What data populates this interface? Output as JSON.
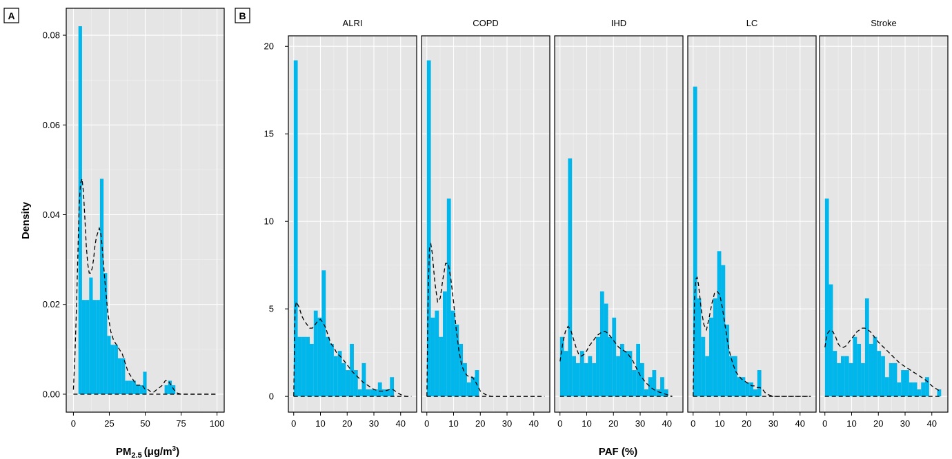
{
  "panels": {
    "a": {
      "letter": "A",
      "ylabel": "Density",
      "xlabel_main": "PM",
      "xlabel_sub": "2.5",
      "xlabel_unit_pre": "(μg/m",
      "xlabel_unit_sup": "3",
      "xlabel_unit_post": ")"
    },
    "b": {
      "letter": "B",
      "xlabel": "PAF (%)"
    }
  },
  "colors": {
    "bars": "#00b6ea",
    "panel_bg": "#e5e5e5",
    "grid": "#ffffff",
    "density_line": "#000000"
  },
  "chart_data": [
    {
      "type": "histogram",
      "panel": "A",
      "xlabel": "PM2.5 (μg/m3)",
      "ylabel": "Density",
      "xlim": [
        -5,
        105
      ],
      "ylim": [
        -0.004,
        0.086
      ],
      "xticks": [
        0,
        25,
        50,
        75,
        100
      ],
      "yticks": [
        0.0,
        0.02,
        0.04,
        0.06,
        0.08
      ],
      "ytick_labels": [
        "0.00",
        "0.02",
        "0.04",
        "0.06",
        "0.08"
      ],
      "bin_width": 2.5,
      "bins_start": [
        3.5,
        6,
        8.5,
        11,
        13.5,
        16,
        18.5,
        21,
        23.5,
        26,
        28.5,
        31,
        33.5,
        36,
        38.5,
        41,
        43.5,
        46,
        48.5,
        51,
        53.5,
        56,
        58.5,
        61,
        63.5,
        66,
        68.5
      ],
      "values": [
        0.082,
        0.021,
        0.021,
        0.026,
        0.021,
        0.021,
        0.048,
        0.027,
        0.013,
        0.011,
        0.011,
        0.008,
        0.008,
        0.003,
        0.003,
        0.003,
        0.002,
        0.002,
        0.005,
        0.0,
        0.0,
        0.0,
        0.0,
        0.0,
        0.002,
        0.003,
        0.002
      ],
      "density": {
        "x": [
          0,
          1,
          2,
          3,
          4,
          5,
          6,
          7,
          8,
          9,
          10,
          11,
          12,
          13,
          14,
          15,
          16,
          17,
          18,
          19,
          20,
          22,
          24,
          26,
          28,
          30,
          32,
          34,
          36,
          38,
          40,
          42,
          44,
          46,
          48,
          50,
          52,
          54,
          56,
          58,
          60,
          62,
          64,
          66,
          68,
          70,
          72,
          75,
          80,
          90,
          100
        ],
        "y": [
          0.001,
          0.008,
          0.018,
          0.03,
          0.042,
          0.047,
          0.048,
          0.045,
          0.039,
          0.033,
          0.029,
          0.027,
          0.027,
          0.028,
          0.03,
          0.033,
          0.035,
          0.036,
          0.037,
          0.036,
          0.033,
          0.025,
          0.018,
          0.014,
          0.012,
          0.011,
          0.01,
          0.009,
          0.007,
          0.005,
          0.004,
          0.003,
          0.002,
          0.002,
          0.002,
          0.001,
          0.001,
          0.0005,
          0.0005,
          0.001,
          0.0015,
          0.002,
          0.003,
          0.003,
          0.002,
          0.001,
          0.0003,
          0.0,
          0.0,
          0.0,
          0.0
        ]
      }
    },
    {
      "type": "histogram",
      "facet": "ALRI",
      "xlim": [
        -2,
        46
      ],
      "ylim": [
        -0.9,
        20.6
      ],
      "xticks": [
        0,
        10,
        20,
        30,
        40
      ],
      "yticks": [
        0,
        5,
        10,
        15,
        20
      ],
      "bin_width": 1.5,
      "bins_start": [
        0,
        1.5,
        3,
        4.5,
        6,
        7.5,
        9,
        10.5,
        12,
        13.5,
        15,
        16.5,
        18,
        19.5,
        21,
        22.5,
        24,
        25.5,
        27,
        28.5,
        30,
        31.5,
        33,
        34.5,
        36
      ],
      "values": [
        19.2,
        3.4,
        3.4,
        3.4,
        3.0,
        4.9,
        4.5,
        7.2,
        3.4,
        3.0,
        2.3,
        2.6,
        1.9,
        1.5,
        3.0,
        1.5,
        0.4,
        1.9,
        0.4,
        0.4,
        0.4,
        0.8,
        0.4,
        0.4,
        1.1
      ],
      "density": {
        "x": [
          0,
          0.5,
          1,
          2,
          3,
          4,
          5,
          6,
          7,
          8,
          9,
          10,
          11,
          12,
          13,
          14,
          15,
          16,
          18,
          20,
          22,
          24,
          26,
          28,
          30,
          32,
          34,
          36,
          37,
          38,
          40,
          42,
          44
        ],
        "y": [
          0,
          5.0,
          5.4,
          5.1,
          4.6,
          4.3,
          4.1,
          3.9,
          3.9,
          4.1,
          4.3,
          4.4,
          4.2,
          3.9,
          3.4,
          3.0,
          2.8,
          2.5,
          2.2,
          1.8,
          1.4,
          1.1,
          0.8,
          0.6,
          0.4,
          0.3,
          0.3,
          0.4,
          0.4,
          0.3,
          0.1,
          0.0,
          0.0
        ]
      }
    },
    {
      "type": "histogram",
      "facet": "COPD",
      "xlim": [
        -2,
        46
      ],
      "ylim": [
        -0.9,
        20.6
      ],
      "xticks": [
        0,
        10,
        20,
        30,
        40
      ],
      "yticks": [
        0,
        5,
        10,
        15,
        20
      ],
      "bin_width": 1.5,
      "bins_start": [
        0,
        1.5,
        3,
        4.5,
        6,
        7.5,
        9,
        10.5,
        12,
        13.5,
        15,
        16.5,
        18
      ],
      "values": [
        19.2,
        4.5,
        4.9,
        3.4,
        6.0,
        11.3,
        4.9,
        4.1,
        3.0,
        1.9,
        0.8,
        1.1,
        1.5
      ],
      "density": {
        "x": [
          0,
          0.5,
          1,
          1.5,
          2,
          3,
          4,
          5,
          6,
          7,
          8,
          9,
          10,
          11,
          12,
          13,
          14,
          15,
          16,
          17,
          18,
          19,
          20,
          22,
          24,
          26,
          30,
          35,
          40,
          44
        ],
        "y": [
          0,
          6.0,
          8.5,
          8.7,
          8.2,
          6.5,
          5.4,
          5.6,
          6.7,
          7.6,
          7.6,
          6.7,
          5.4,
          3.8,
          2.6,
          1.8,
          1.4,
          1.2,
          1.1,
          1.1,
          0.9,
          0.6,
          0.3,
          0.1,
          0.0,
          0.0,
          0.0,
          0.0,
          0.0,
          0.0
        ]
      }
    },
    {
      "type": "histogram",
      "facet": "IHD",
      "xlim": [
        -2,
        46
      ],
      "ylim": [
        -0.9,
        20.6
      ],
      "xticks": [
        0,
        10,
        20,
        30,
        40
      ],
      "yticks": [
        0,
        5,
        10,
        15,
        20
      ],
      "bin_width": 1.5,
      "bins_start": [
        0,
        1.5,
        3,
        4.5,
        6,
        7.5,
        9,
        10.5,
        12,
        13.5,
        15,
        16.5,
        18,
        19.5,
        21,
        22.5,
        24,
        25.5,
        27,
        28.5,
        30,
        31.5,
        33,
        34.5,
        36,
        37.5,
        39
      ],
      "values": [
        3.4,
        2.6,
        13.6,
        2.3,
        1.9,
        2.6,
        1.9,
        2.3,
        1.9,
        3.4,
        6.0,
        5.3,
        3.4,
        4.5,
        2.3,
        3.0,
        2.6,
        2.6,
        1.5,
        3.0,
        1.9,
        0.4,
        1.1,
        1.5,
        0.4,
        1.1,
        0.4
      ],
      "density": {
        "x": [
          0,
          0.5,
          1,
          2,
          3,
          4,
          5,
          6,
          7,
          8,
          9,
          10,
          11,
          12,
          13,
          14,
          15,
          16,
          17,
          18,
          19,
          20,
          21,
          22,
          23,
          24,
          25,
          26,
          27,
          28,
          29,
          30,
          32,
          34,
          36,
          38,
          40,
          42
        ],
        "y": [
          2.0,
          2.5,
          3.0,
          3.7,
          4.0,
          3.8,
          3.3,
          2.8,
          2.4,
          2.3,
          2.4,
          2.6,
          2.9,
          3.1,
          3.3,
          3.5,
          3.6,
          3.7,
          3.7,
          3.6,
          3.4,
          3.2,
          3.0,
          2.8,
          2.7,
          2.6,
          2.5,
          2.3,
          2.1,
          1.8,
          1.5,
          1.2,
          0.8,
          0.5,
          0.3,
          0.2,
          0.1,
          0.0
        ]
      }
    },
    {
      "type": "histogram",
      "facet": "LC",
      "xlim": [
        -2,
        46
      ],
      "ylim": [
        -0.9,
        20.6
      ],
      "xticks": [
        0,
        10,
        20,
        30,
        40
      ],
      "yticks": [
        0,
        5,
        10,
        15,
        20
      ],
      "bin_width": 1.5,
      "bins_start": [
        0,
        1.5,
        3,
        4.5,
        6,
        7.5,
        9,
        10.5,
        12,
        13.5,
        15,
        16.5,
        18,
        19.5,
        21,
        22.5,
        24
      ],
      "values": [
        17.7,
        5.6,
        3.4,
        2.3,
        4.5,
        5.6,
        8.3,
        7.5,
        4.1,
        2.3,
        2.3,
        1.1,
        1.1,
        0.8,
        0.8,
        0.4,
        1.5
      ],
      "density": {
        "x": [
          0,
          0.5,
          1,
          1.5,
          2,
          3,
          4,
          5,
          6,
          7,
          8,
          9,
          10,
          11,
          12,
          13,
          14,
          15,
          16,
          17,
          18,
          19,
          20,
          21,
          22,
          23,
          24,
          25,
          26,
          27,
          28,
          30,
          35,
          40,
          44
        ],
        "y": [
          0,
          5.5,
          6.7,
          6.8,
          6.4,
          5.0,
          4.1,
          3.8,
          4.5,
          5.3,
          5.9,
          6.0,
          5.8,
          5.0,
          4.0,
          3.0,
          2.3,
          1.8,
          1.4,
          1.2,
          1.0,
          0.9,
          0.8,
          0.7,
          0.6,
          0.6,
          0.5,
          0.5,
          0.4,
          0.2,
          0.1,
          0.0,
          0.0,
          0.0,
          0.0
        ]
      }
    },
    {
      "type": "histogram",
      "facet": "Stroke",
      "xlim": [
        -2,
        46
      ],
      "ylim": [
        -0.9,
        20.6
      ],
      "xticks": [
        0,
        10,
        20,
        30,
        40
      ],
      "yticks": [
        0,
        5,
        10,
        15,
        20
      ],
      "bin_width": 1.5,
      "bins_start": [
        0,
        1.5,
        3,
        4.5,
        6,
        7.5,
        9,
        10.5,
        12,
        13.5,
        15,
        16.5,
        18,
        19.5,
        21,
        22.5,
        24,
        25.5,
        27,
        28.5,
        30,
        31.5,
        33,
        34.5,
        36,
        37.5,
        39,
        40.5,
        42
      ],
      "values": [
        11.3,
        6.4,
        2.6,
        1.9,
        2.3,
        2.3,
        1.9,
        3.4,
        3.0,
        1.9,
        5.6,
        3.0,
        3.4,
        2.6,
        2.3,
        1.1,
        1.9,
        1.9,
        0.8,
        1.5,
        1.5,
        0.8,
        0.8,
        0.4,
        0.8,
        1.1,
        0.0,
        0.0,
        0.4
      ],
      "density": {
        "x": [
          0,
          0.5,
          1,
          2,
          3,
          4,
          5,
          6,
          7,
          8,
          9,
          10,
          11,
          12,
          13,
          14,
          15,
          16,
          17,
          18,
          19,
          20,
          22,
          24,
          26,
          28,
          30,
          32,
          34,
          36,
          37,
          38,
          40,
          42,
          43
        ],
        "y": [
          2.8,
          3.3,
          3.6,
          3.8,
          3.7,
          3.4,
          3.0,
          2.8,
          2.8,
          2.9,
          3.1,
          3.3,
          3.5,
          3.7,
          3.8,
          3.9,
          3.9,
          3.8,
          3.7,
          3.5,
          3.3,
          3.1,
          2.8,
          2.5,
          2.2,
          1.9,
          1.7,
          1.5,
          1.3,
          1.1,
          1.0,
          0.9,
          0.6,
          0.4,
          0.3
        ]
      }
    }
  ]
}
